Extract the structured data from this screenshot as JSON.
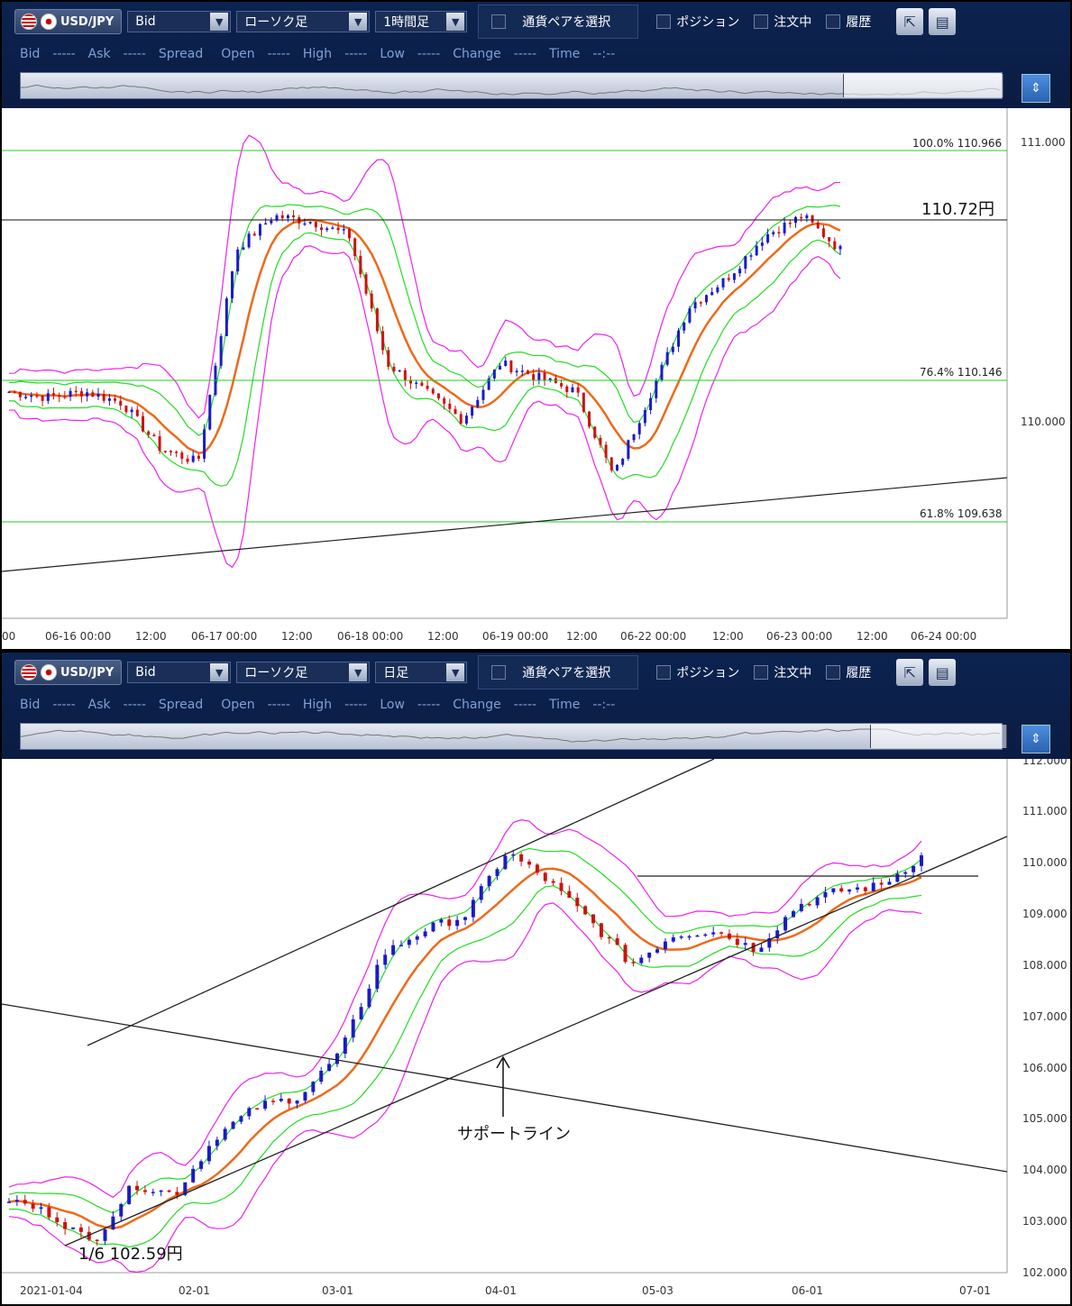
{
  "panel1": {
    "pair": "USD/JPY",
    "price_type": "Bid",
    "chart_kind": "ローソク足",
    "timeframe": "1時間足",
    "select_pair_label": "通貨ペアを選択",
    "checks": [
      "ポジション",
      "注文中",
      "履歴"
    ],
    "quote_labels": [
      "Bid",
      "-----",
      "Ask",
      "-----",
      "Spread",
      "Open",
      "-----",
      "High",
      "-----",
      "Low",
      "-----",
      "Change",
      "-----",
      "Time",
      "--:--"
    ],
    "y_ticks": [
      "111.000",
      "110.000"
    ],
    "x_ticks": [
      "00",
      "06-16 00:00",
      "12:00",
      "06-17 00:00",
      "12:00",
      "06-18 00:00",
      "12:00",
      "06-19 00:00",
      "12:00",
      "06-22 00:00",
      "12:00",
      "06-23 00:00",
      "12:00",
      "06-24 00:00"
    ],
    "annotations": {
      "fib100": "100.0%  110.966",
      "fib764": "76.4%  110.146",
      "fib618": "61.8%  109.638",
      "level": "110.72円"
    }
  },
  "panel2": {
    "pair": "USD/JPY",
    "price_type": "Bid",
    "chart_kind": "ローソク足",
    "timeframe": "日足",
    "select_pair_label": "通貨ペアを選択",
    "checks": [
      "ポジション",
      "注文中",
      "履歴"
    ],
    "quote_labels": [
      "Bid",
      "-----",
      "Ask",
      "-----",
      "Spread",
      "Open",
      "-----",
      "High",
      "-----",
      "Low",
      "-----",
      "Change",
      "-----",
      "Time",
      "--:--"
    ],
    "y_ticks": [
      "112.000",
      "111.000",
      "110.000",
      "109.000",
      "108.000",
      "107.000",
      "106.000",
      "105.000",
      "104.000",
      "103.000",
      "102.000"
    ],
    "x_ticks": [
      "2021-01-04",
      "02-01",
      "03-01",
      "04-01",
      "05-03",
      "06-01",
      "07-01"
    ],
    "annotations": {
      "support": "サポートライン",
      "low": "1/6  102.59円"
    }
  },
  "colors": {
    "bull": "#1a1acc",
    "bear": "#d01010",
    "ma": "#ee6a1a",
    "band1": "#22dd22",
    "band2": "#ee22ee",
    "fib": "#22cc22"
  },
  "chart_data": [
    {
      "type": "candlestick",
      "title": "",
      "timeframe": "1時間足",
      "ylim": [
        109.3,
        111.1
      ],
      "x": [
        "06-16 00:00",
        "06-17 00:00",
        "06-18 00:00",
        "06-19 00:00",
        "06-22 00:00",
        "06-23 00:00",
        "06-24 00:00"
      ],
      "close_path": [
        110.1,
        110.08,
        110.1,
        110.06,
        109.9,
        109.85,
        110.6,
        110.72,
        110.7,
        110.65,
        110.2,
        110.1,
        110.0,
        110.2,
        110.15,
        110.1,
        109.8,
        110.1,
        110.4,
        110.5,
        110.65,
        110.72,
        110.6
      ],
      "levels": {
        "fib100": 110.966,
        "fib764": 110.146,
        "fib618": 109.638,
        "horizontal": 110.72
      }
    },
    {
      "type": "candlestick",
      "title": "",
      "timeframe": "日足",
      "ylim": [
        102.0,
        112.0
      ],
      "x": [
        "2021-01-04",
        "02-01",
        "03-01",
        "04-01",
        "05-03",
        "06-01",
        "07-01"
      ],
      "close_path": [
        103.5,
        103.2,
        102.6,
        103.8,
        103.6,
        104.8,
        105.4,
        105.6,
        106.5,
        108.5,
        109.0,
        109.3,
        110.6,
        110.0,
        109.2,
        108.3,
        108.9,
        109.0,
        108.6,
        109.5,
        109.8,
        109.9,
        110.5
      ],
      "levels": {
        "low": 102.59,
        "horizontal": 109.7
      }
    }
  ]
}
